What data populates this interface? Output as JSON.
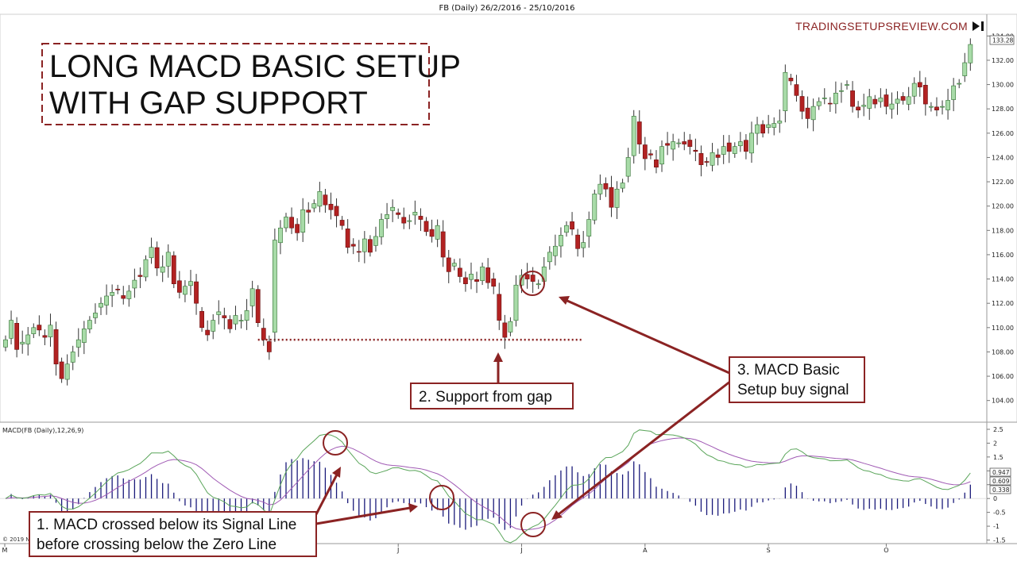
{
  "header": {
    "title": "FB (Daily)  26/2/2016 - 25/10/2016",
    "watermark": "TRADINGSETUPSREVIEW.COM",
    "copyright": "© 2019 Ni"
  },
  "headline": {
    "line1": "LONG MACD BASIC SETUP",
    "line2": "WITH GAP SUPPORT"
  },
  "annotations": {
    "support": "2. Support from gap",
    "signal_line1": "3. MACD Basic",
    "signal_line2": "Setup buy signal",
    "macd_line1": "1. MACD crossed below its Signal Line",
    "macd_line2": "before crossing below the Zero Line"
  },
  "colors": {
    "up_candle": "#a8dba8",
    "down_candle": "#b22222",
    "macd_line": "#5aa55a",
    "signal_line": "#a05ab4",
    "histogram": "#1a1a7a",
    "annotation": "#8b2323"
  },
  "chart_data": [
    {
      "type": "candlestick",
      "title": "FB (Daily)  26/2/2016 - 25/10/2016",
      "ylim": [
        103,
        135
      ],
      "y_ticks": [
        104,
        106,
        108,
        110,
        112,
        114,
        116,
        118,
        120,
        122,
        124,
        126,
        128,
        130,
        132,
        134
      ],
      "y_tick_labels": [
        "104.00",
        "106.00",
        "108.00",
        "110.00",
        "112.00",
        "114.00",
        "116.00",
        "118.00",
        "120.00",
        "122.00",
        "124.00",
        "126.00",
        "128.00",
        "130.00",
        "132.00",
        "134.00"
      ],
      "last_price_label": "133.28",
      "x_tick_labels": [
        "M",
        "A",
        "M",
        "J",
        "J",
        "A",
        "S",
        "O"
      ],
      "grid": false,
      "gap_support_level": 109.0,
      "closes": [
        109.0,
        110.6,
        108.2,
        108.8,
        109.4,
        110.0,
        109.8,
        109.2,
        110.2,
        107.0,
        105.8,
        107.0,
        108.0,
        109.0,
        109.9,
        110.6,
        111.2,
        112.0,
        112.6,
        112.9,
        113.1,
        112.4,
        113.0,
        113.9,
        114.2,
        115.6,
        116.6,
        114.9,
        115.0,
        116.2,
        113.6,
        112.9,
        113.4,
        113.8,
        112.0,
        110.0,
        109.4,
        110.6,
        111.3,
        110.8,
        109.9,
        111.0,
        110.6,
        111.4,
        113.2,
        110.4,
        109.0,
        108.0,
        117.2,
        118.2,
        119.1,
        118.2,
        117.8,
        119.7,
        119.5,
        120.2,
        121.2,
        120.1,
        119.7,
        119.2,
        118.4,
        116.6,
        116.7,
        116.2,
        117.3,
        116.2,
        117.5,
        118.9,
        119.3,
        119.9,
        119.3,
        118.6,
        118.8,
        119.5,
        118.9,
        117.9,
        117.5,
        118.4,
        115.8,
        114.6,
        115.3,
        114.2,
        113.6,
        114.4,
        113.8,
        115.0,
        113.7,
        113.4,
        110.6,
        109.2,
        110.5,
        113.5,
        114.3,
        114.0,
        113.8,
        113.6,
        115.0,
        116.2,
        116.7,
        117.6,
        118.4,
        118.1,
        116.5,
        117.0,
        118.9,
        121.0,
        121.8,
        121.4,
        119.9,
        121.4,
        121.9,
        124.0,
        127.4,
        125.1,
        123.9,
        124.2,
        123.2,
        124.9,
        125.0,
        125.3,
        125.2,
        125.1,
        124.9,
        124.5,
        123.4,
        123.6,
        124.4,
        124.0,
        124.9,
        124.5,
        124.9,
        125.3,
        124.5,
        126.0,
        126.7,
        126.0,
        126.7,
        126.8,
        127.0,
        131.0,
        130.3,
        129.1,
        127.8,
        127.2,
        128.2,
        128.6,
        128.9,
        128.4,
        129.3,
        129.5,
        130.0,
        128.2,
        127.9,
        128.3,
        129.0,
        128.4,
        128.9,
        128.2,
        128.4,
        128.8,
        128.7,
        129.0,
        130.1,
        129.8,
        128.4,
        128.2,
        127.9,
        128.2,
        128.7,
        129.9,
        130.1,
        131.8,
        133.3
      ]
    },
    {
      "type": "line",
      "title": "MACD(FB (Daily),12,26,9)",
      "ylim": [
        -1.6,
        2.7
      ],
      "y_ticks": [
        -1.5,
        -1,
        -0.5,
        0,
        0.5,
        1,
        1.5,
        2,
        2.5
      ],
      "y_tick_labels": [
        "-1.5",
        "-1",
        "-0.5",
        "0",
        "0.5",
        "1",
        "1.5",
        "2",
        "2.5"
      ],
      "value_tags": [
        "0.947",
        "0.609",
        "0.338"
      ],
      "zero_line": true
    }
  ]
}
